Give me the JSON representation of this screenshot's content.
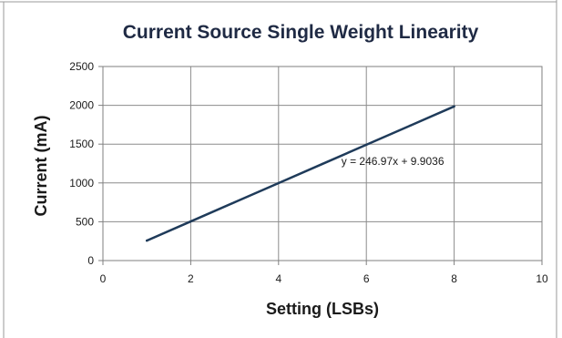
{
  "chart_data": {
    "type": "line",
    "title": "Current Source Single Weight Linearity",
    "xlabel": "Setting (LSBs)",
    "ylabel": "Current (mA)",
    "xlim": [
      0,
      10
    ],
    "ylim": [
      0,
      2500
    ],
    "xticks": [
      0,
      2,
      4,
      6,
      8,
      10
    ],
    "yticks": [
      0,
      500,
      1000,
      1500,
      2000,
      2500
    ],
    "grid": true,
    "legend": "none",
    "series": [
      {
        "x": [
          1,
          2,
          3,
          4,
          5,
          6,
          7,
          8
        ],
        "values": [
          257,
          504,
          751,
          998,
          1245,
          1492,
          1739,
          1986
        ],
        "color": "#1f3b5a"
      }
    ],
    "annotations": [
      {
        "text": "y = 246.97x + 9.9036",
        "x": 6.6,
        "y": 1230
      }
    ]
  }
}
